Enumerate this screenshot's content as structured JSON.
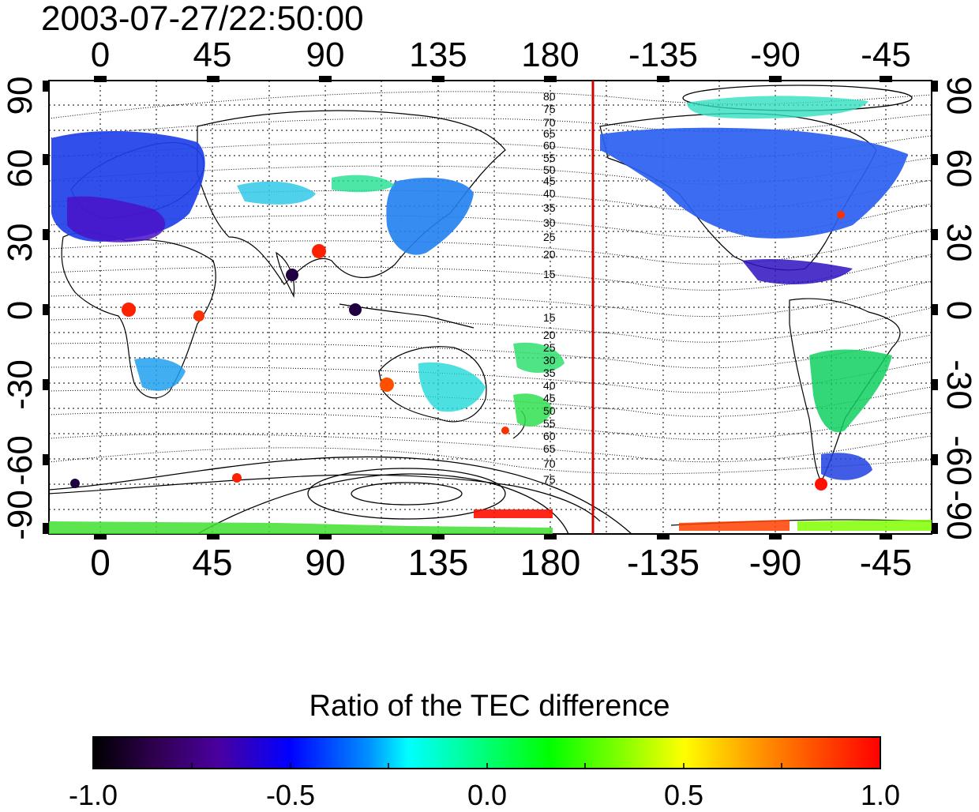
{
  "title": "2003-07-27/22:50:00",
  "lon_ticks": [
    "0",
    "45",
    "90",
    "135",
    "180",
    "-135",
    "-90",
    "-45"
  ],
  "lat_ticks": [
    "90",
    "60",
    "30",
    "0",
    "-30",
    "-60",
    "-90"
  ],
  "contour_labels_north": [
    "80",
    "75",
    "70",
    "65",
    "60",
    "55",
    "50",
    "45",
    "40",
    "35",
    "30",
    "25",
    "20",
    "15"
  ],
  "contour_labels_south": [
    "15",
    "20",
    "25",
    "30",
    "35",
    "40",
    "45",
    "50",
    "55",
    "60",
    "65",
    "70",
    "75"
  ],
  "colorbar": {
    "title": "Ratio of the TEC difference",
    "min": -1.0,
    "max": 1.0,
    "labels": [
      "-1.0",
      "-0.5",
      "0.0",
      "0.5",
      "1.0"
    ]
  },
  "terminator_longitude": -157.5,
  "colors": {
    "terminator": "#d00000",
    "colormap": [
      "#000000",
      "#3a0060",
      "#4b00b0",
      "#0000ff",
      "#0090ff",
      "#00ffff",
      "#00ff80",
      "#00ff00",
      "#80ff00",
      "#ffff00",
      "#ffa000",
      "#ff4000",
      "#ff0000"
    ]
  }
}
